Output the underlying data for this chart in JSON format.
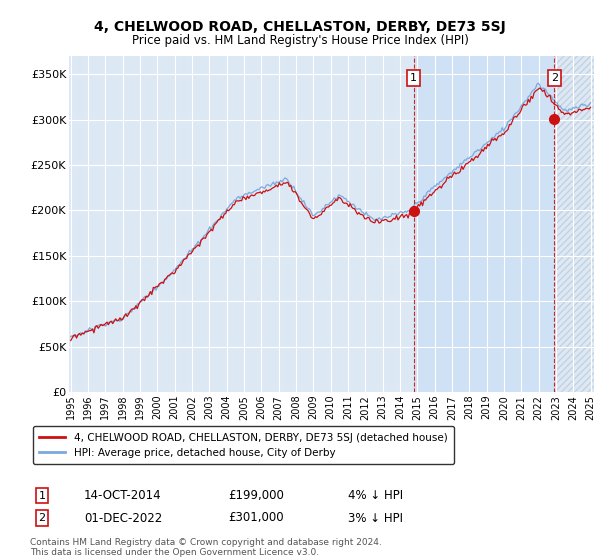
{
  "title": "4, CHELWOOD ROAD, CHELLASTON, DERBY, DE73 5SJ",
  "subtitle": "Price paid vs. HM Land Registry's House Price Index (HPI)",
  "background_color": "#ffffff",
  "plot_bg_color": "#dde8f5",
  "grid_color": "#ffffff",
  "shade_color": "#ccddf0",
  "ylim": [
    0,
    370000
  ],
  "yticks": [
    0,
    50000,
    100000,
    150000,
    200000,
    250000,
    300000,
    350000
  ],
  "ytick_labels": [
    "£0",
    "£50K",
    "£100K",
    "£150K",
    "£200K",
    "£250K",
    "£300K",
    "£350K"
  ],
  "sale1_year": 2014.79,
  "sale1_price": 199000,
  "sale1_label": "1",
  "sale1_date_str": "14-OCT-2014",
  "sale1_price_str": "£199,000",
  "sale1_pct": "4% ↓ HPI",
  "sale2_year": 2022.92,
  "sale2_price": 301000,
  "sale2_label": "2",
  "sale2_date_str": "01-DEC-2022",
  "sale2_price_str": "£301,000",
  "sale2_pct": "3% ↓ HPI",
  "hpi_color": "#7aaadd",
  "sale_color": "#cc1111",
  "dashed_line_color": "#cc1111",
  "legend_label_sale": "4, CHELWOOD ROAD, CHELLASTON, DERBY, DE73 5SJ (detached house)",
  "legend_label_hpi": "HPI: Average price, detached house, City of Derby",
  "footer": "Contains HM Land Registry data © Crown copyright and database right 2024.\nThis data is licensed under the Open Government Licence v3.0.",
  "xstart": 1995,
  "xend": 2025
}
